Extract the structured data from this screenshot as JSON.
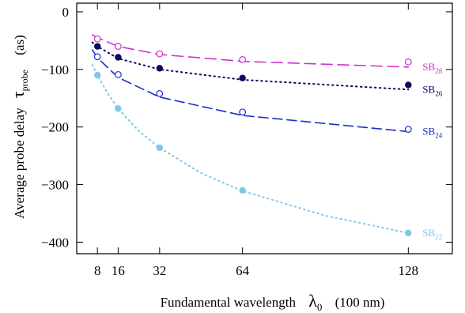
{
  "chart_data": {
    "type": "scatter",
    "title": "",
    "xlabel": "Fundamental wavelength",
    "xlabel_symbol": "λ",
    "xlabel_symbol_sub": "0",
    "xlabel_unit": "(100 nm)",
    "ylabel": "Average probe delay",
    "ylabel_symbol": "τ",
    "ylabel_symbol_sub": "probe",
    "ylabel_unit": "(as)",
    "xlim": [
      0,
      145
    ],
    "ylim": [
      -420,
      15
    ],
    "xticks": [
      8,
      16,
      32,
      64,
      128
    ],
    "yticks": [
      0,
      -100,
      -200,
      -300,
      -400
    ],
    "grid": false,
    "series": [
      {
        "name": "SB",
        "name_sub": "28",
        "color": "#cc33cc",
        "marker": "open-circle",
        "fit_style": "long-dash",
        "x": [
          8,
          16,
          32,
          64,
          128
        ],
        "y": [
          -47,
          -60,
          -73,
          -83,
          -87
        ],
        "fit_x": [
          6,
          8,
          16,
          32,
          64,
          128
        ],
        "fit_y": [
          -40,
          -45,
          -60,
          -74,
          -86,
          -96
        ]
      },
      {
        "name": "SB",
        "name_sub": "26",
        "color": "#0a0a60",
        "marker": "filled-circle",
        "fit_style": "dotted",
        "x": [
          8,
          16,
          32,
          64,
          128
        ],
        "y": [
          -60,
          -79,
          -98,
          -115,
          -127
        ],
        "fit_x": [
          6,
          8,
          16,
          32,
          64,
          128
        ],
        "fit_y": [
          -53,
          -60,
          -81,
          -100,
          -118,
          -135
        ]
      },
      {
        "name": "SB",
        "name_sub": "24",
        "color": "#1c2fc8",
        "marker": "open-circle",
        "fit_style": "dash",
        "x": [
          8,
          16,
          32,
          64,
          128
        ],
        "y": [
          -78,
          -109,
          -142,
          -174,
          -204
        ],
        "fit_x": [
          6,
          8,
          16,
          32,
          64,
          128
        ],
        "fit_y": [
          -66,
          -80,
          -114,
          -148,
          -180,
          -208
        ]
      },
      {
        "name": "SB",
        "name_sub": "22",
        "color": "#7fc8ea",
        "marker": "filled-circle",
        "fit_style": "dotted",
        "x": [
          8,
          16,
          32,
          64,
          128
        ],
        "y": [
          -110,
          -168,
          -236,
          -310,
          -384
        ],
        "fit_x": [
          6,
          8,
          12,
          16,
          24,
          32,
          48,
          64,
          96,
          128
        ],
        "fit_y": [
          -92,
          -110,
          -142,
          -168,
          -207,
          -236,
          -280,
          -311,
          -354,
          -384
        ]
      }
    ]
  }
}
